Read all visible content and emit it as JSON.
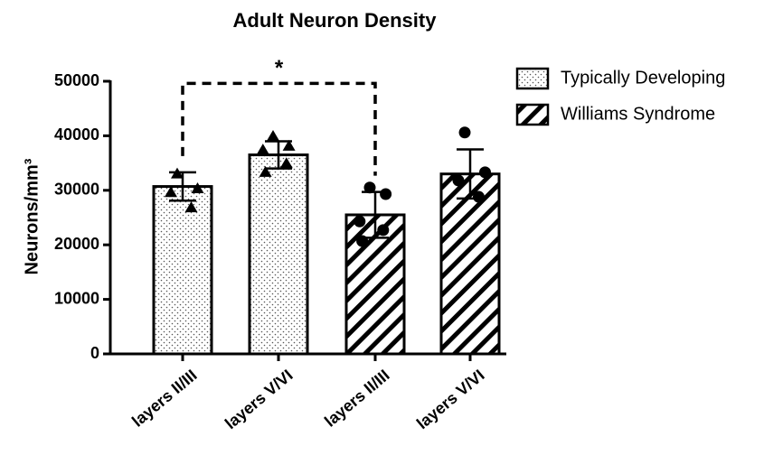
{
  "chart_data": {
    "type": "bar",
    "title": "Adult Neuron Density",
    "y_label": "Neurons/mm³",
    "categories": [
      "layers II/III",
      "layers V/VI",
      "layers II/III",
      "layers V/VI"
    ],
    "ylim": [
      0,
      50000
    ],
    "yticks": [
      0,
      10000,
      20000,
      30000,
      40000,
      50000
    ],
    "series": [
      {
        "name": "Typically Developing",
        "pattern": "dots",
        "marker": "triangle",
        "color": "#000000",
        "values": [
          30700,
          36500,
          null,
          null
        ],
        "errors": [
          2600,
          2500,
          null,
          null
        ],
        "points": [
          [
            33000,
            30300,
            29600,
            26800
          ],
          [
            39900,
            38100,
            37400,
            34900,
            33300
          ],
          null,
          null
        ]
      },
      {
        "name": "Williams Syndrome",
        "pattern": "hatch",
        "marker": "circle",
        "color": "#000000",
        "values": [
          null,
          null,
          25500,
          33000
        ],
        "errors": [
          null,
          null,
          4200,
          4500
        ],
        "points": [
          null,
          null,
          [
            30500,
            29300,
            24300,
            22700,
            20700
          ],
          [
            40600,
            33300,
            31800,
            28800
          ]
        ]
      }
    ],
    "annotation": {
      "text": "*",
      "between": [
        0,
        2
      ],
      "y": 49600
    }
  }
}
